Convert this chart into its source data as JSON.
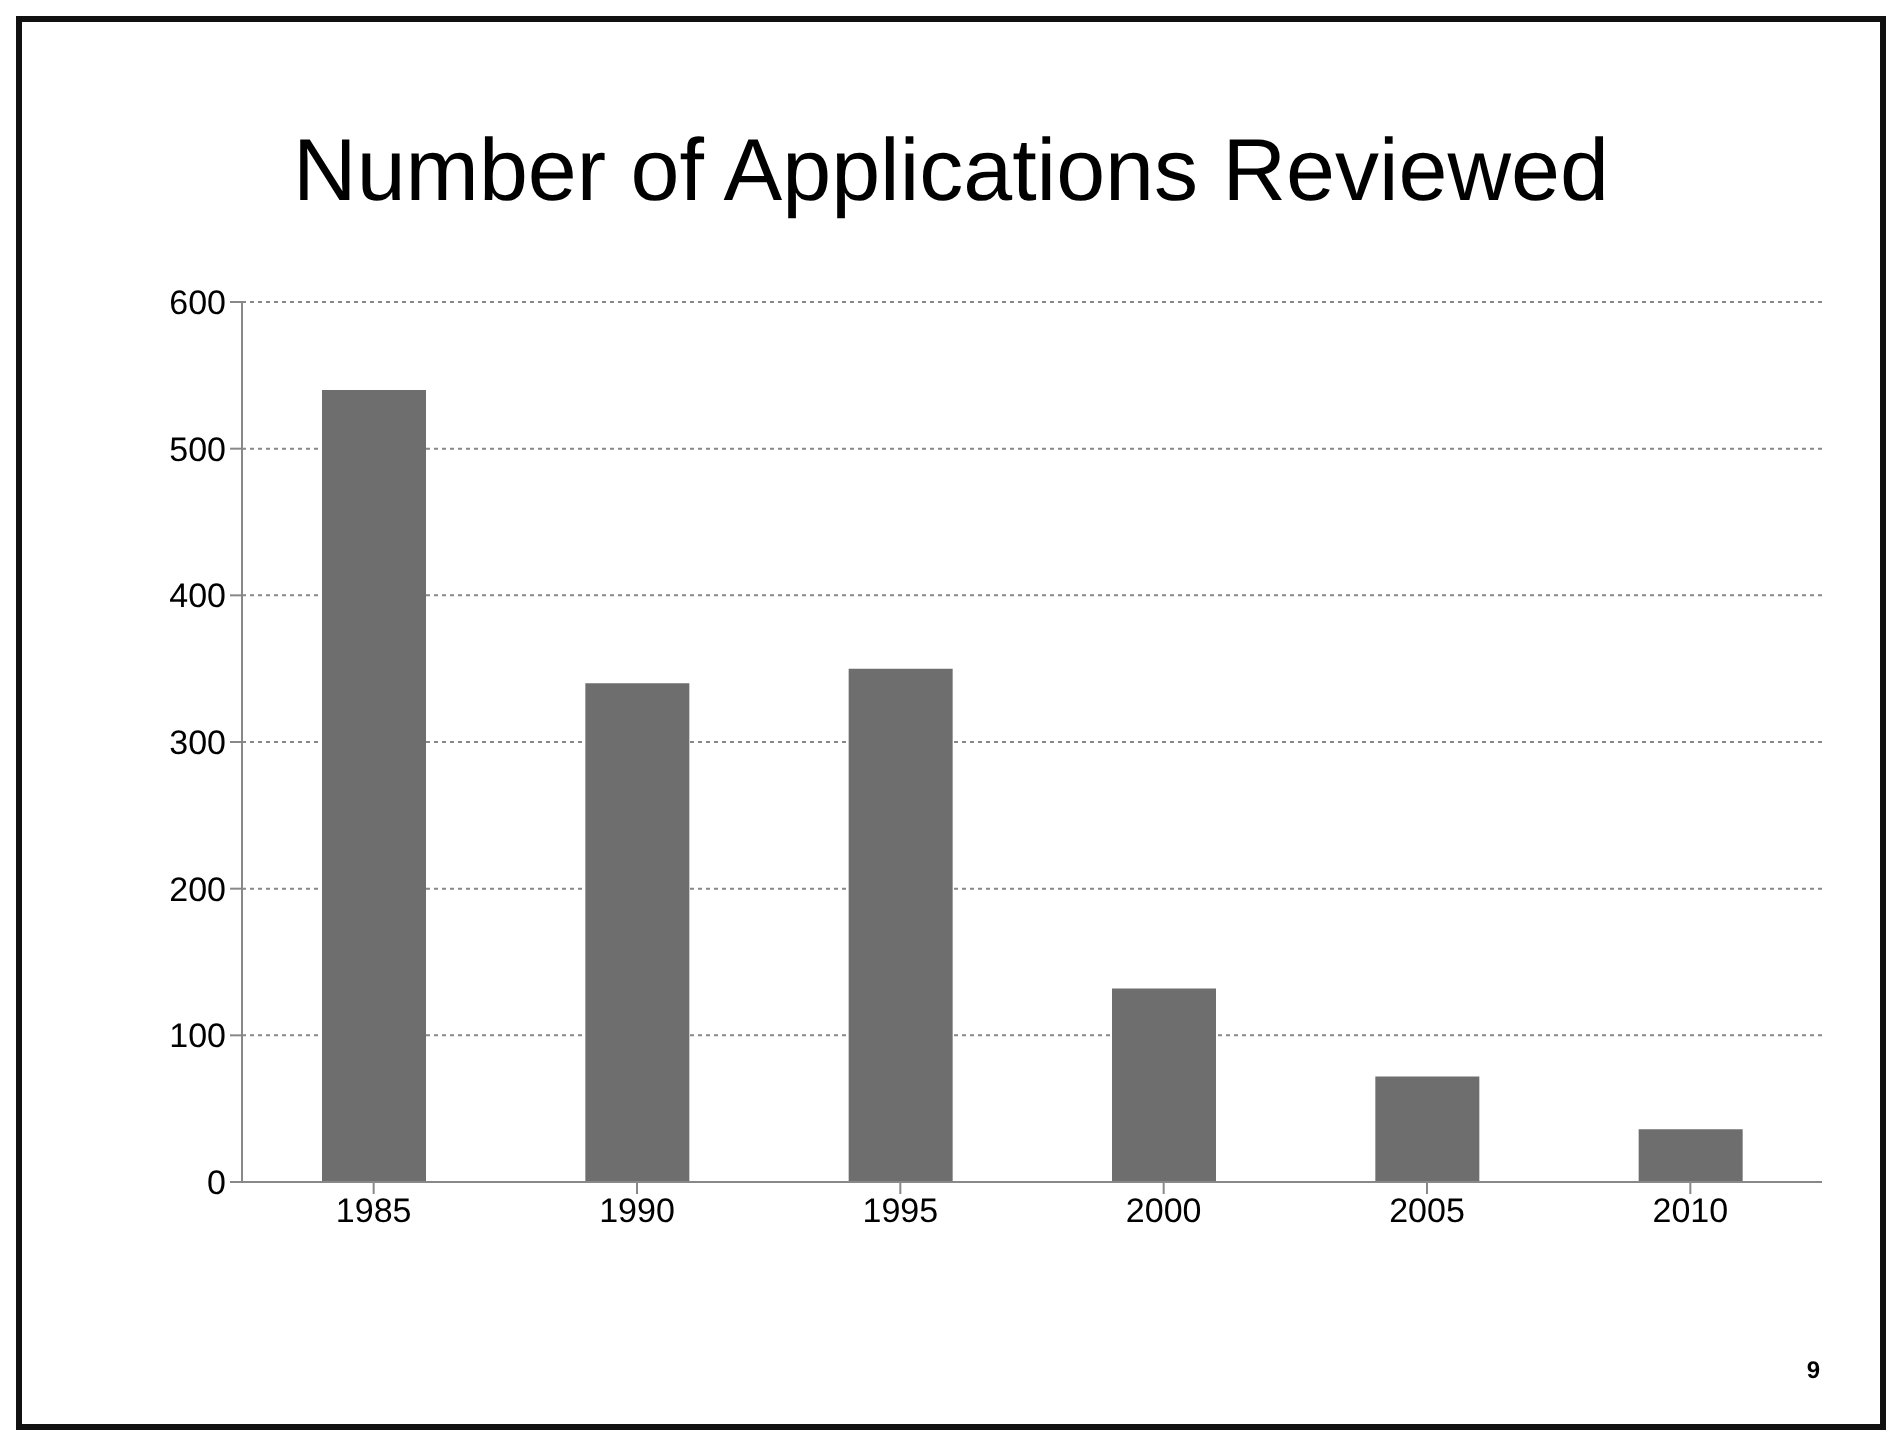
{
  "chart_data": {
    "type": "bar",
    "title": "Number of Applications Reviewed",
    "categories": [
      "1985",
      "1990",
      "1995",
      "2000",
      "2005",
      "2010"
    ],
    "values": [
      540,
      340,
      350,
      132,
      72,
      36
    ],
    "color": "#6e6e6e",
    "ylim": [
      0,
      600
    ],
    "yticks": [
      0,
      100,
      200,
      300,
      400,
      500,
      600
    ],
    "grid": "y",
    "annotations": [
      "9"
    ]
  }
}
